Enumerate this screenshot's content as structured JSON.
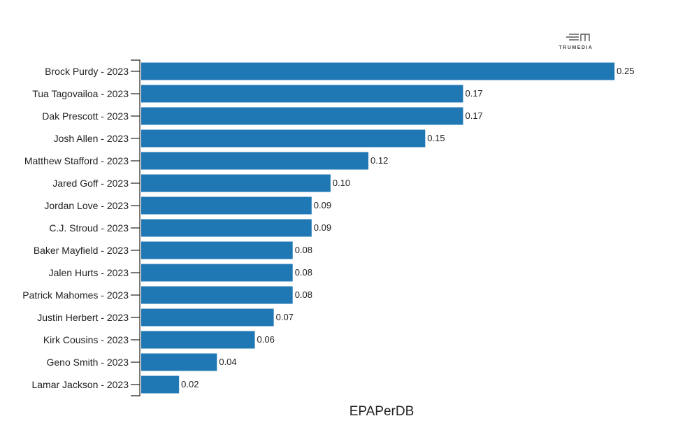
{
  "chart_data": {
    "type": "bar",
    "orientation": "horizontal",
    "categories": [
      "Brock Purdy - 2023",
      "Tua Tagovailoa - 2023",
      "Dak Prescott - 2023",
      "Josh Allen - 2023",
      "Matthew Stafford - 2023",
      "Jared Goff - 2023",
      "Jordan Love - 2023",
      "C.J. Stroud - 2023",
      "Baker Mayfield - 2023",
      "Jalen Hurts - 2023",
      "Patrick Mahomes - 2023",
      "Justin Herbert - 2023",
      "Kirk Cousins - 2023",
      "Geno Smith - 2023",
      "Lamar Jackson - 2023"
    ],
    "values": [
      0.25,
      0.17,
      0.17,
      0.15,
      0.12,
      0.1,
      0.09,
      0.09,
      0.08,
      0.08,
      0.08,
      0.07,
      0.06,
      0.04,
      0.02
    ],
    "value_labels": [
      "0.25",
      "0.17",
      "0.17",
      "0.15",
      "0.12",
      "0.10",
      "0.09",
      "0.09",
      "0.08",
      "0.08",
      "0.08",
      "0.07",
      "0.06",
      "0.04",
      "0.02"
    ],
    "xlabel": "EPAPerDB",
    "xlim": [
      0,
      0.2503
    ],
    "grid": false,
    "bar_color": "#1f77b4"
  },
  "logo": {
    "text": "TRUMEDIA"
  }
}
